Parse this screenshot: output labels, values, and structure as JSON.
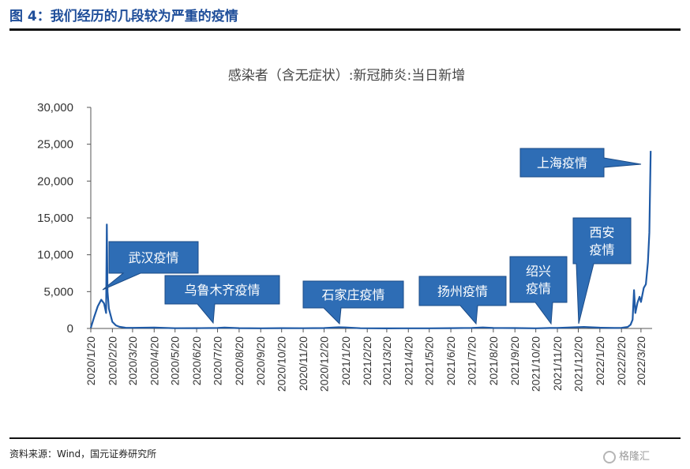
{
  "figure_title": "图 4：我们经历的几段较为严重的疫情",
  "source_note": "资料来源：Wind，国元证券研究所",
  "watermark": "格隆汇",
  "colors": {
    "line": "#1f5aa6",
    "callout_fill": "#2e6db5",
    "callout_border": "#1a4a86",
    "title": "#1f4e9a"
  },
  "chart_data": {
    "type": "line",
    "title": "感染者（含无症状）:新冠肺炎:当日新增",
    "xlabel": "",
    "ylabel": "",
    "ylim": [
      0,
      30000
    ],
    "yticks": [
      "0",
      "5,000",
      "10,000",
      "15,000",
      "20,000",
      "25,000",
      "30,000"
    ],
    "grid": false,
    "xticks": [
      "2020/1/20",
      "2020/2/20",
      "2020/3/20",
      "2020/4/20",
      "2020/5/20",
      "2020/6/20",
      "2020/7/20",
      "2020/8/20",
      "2020/9/20",
      "2020/10/20",
      "2020/11/20",
      "2020/12/20",
      "2021/1/20",
      "2021/2/20",
      "2021/3/20",
      "2021/4/20",
      "2021/5/20",
      "2021/6/20",
      "2021/7/20",
      "2021/8/20",
      "2021/9/20",
      "2021/10/20",
      "2021/11/20",
      "2021/12/20",
      "2022/1/20",
      "2022/2/20",
      "2022/3/20"
    ],
    "series": [
      {
        "x": [
          "2020/1/20",
          "2020/1/25",
          "2020/1/30",
          "2020/2/4",
          "2020/2/8",
          "2020/2/11",
          "2020/2/12",
          "2020/2/13",
          "2020/2/15",
          "2020/2/20",
          "2020/2/25",
          "2020/3/1",
          "2020/3/10",
          "2020/3/20",
          "2020/4/20",
          "2020/5/20",
          "2020/6/20",
          "2020/7/20",
          "2020/7/30",
          "2020/8/20",
          "2020/9/20",
          "2020/10/20",
          "2020/11/20",
          "2020/12/20",
          "2021/1/10",
          "2021/1/20",
          "2021/2/10",
          "2021/3/20",
          "2021/4/20",
          "2021/5/20",
          "2021/6/20",
          "2021/7/20",
          "2021/8/5",
          "2021/8/20",
          "2021/9/20",
          "2021/10/20",
          "2021/11/10",
          "2021/11/20",
          "2021/12/20",
          "2021/12/28",
          "2022/1/10",
          "2022/1/20",
          "2022/2/10",
          "2022/2/20",
          "2022/3/1",
          "2022/3/5",
          "2022/3/8",
          "2022/3/10",
          "2022/3/12",
          "2022/3/15",
          "2022/3/18",
          "2022/3/20",
          "2022/3/24",
          "2022/3/27",
          "2022/3/30",
          "2022/4/1",
          "2022/4/3"
        ],
        "values": [
          80,
          1600,
          3000,
          3900,
          3400,
          2100,
          14100,
          5000,
          2700,
          900,
          420,
          220,
          100,
          90,
          120,
          30,
          40,
          60,
          120,
          40,
          20,
          40,
          30,
          50,
          160,
          140,
          30,
          10,
          20,
          20,
          40,
          70,
          140,
          60,
          50,
          20,
          60,
          80,
          170,
          200,
          150,
          110,
          60,
          90,
          200,
          500,
          1200,
          5200,
          2100,
          3500,
          4300,
          3600,
          5500,
          6000,
          9000,
          13000,
          24100
        ]
      }
    ],
    "annotations": [
      {
        "label": "武汉疫情",
        "x": "2020/2/12"
      },
      {
        "label": "乌鲁木齐疫情",
        "x": "2020/7/20"
      },
      {
        "label": "石家庄疫情",
        "x": "2021/1/10"
      },
      {
        "label": "扬州疫情",
        "x": "2021/7/30"
      },
      {
        "label": "绍兴疫情",
        "x": "2021/12/10"
      },
      {
        "label": "西安疫情",
        "x": "2021/12/28"
      },
      {
        "label": "上海疫情",
        "x": "2022/4/3"
      }
    ]
  }
}
